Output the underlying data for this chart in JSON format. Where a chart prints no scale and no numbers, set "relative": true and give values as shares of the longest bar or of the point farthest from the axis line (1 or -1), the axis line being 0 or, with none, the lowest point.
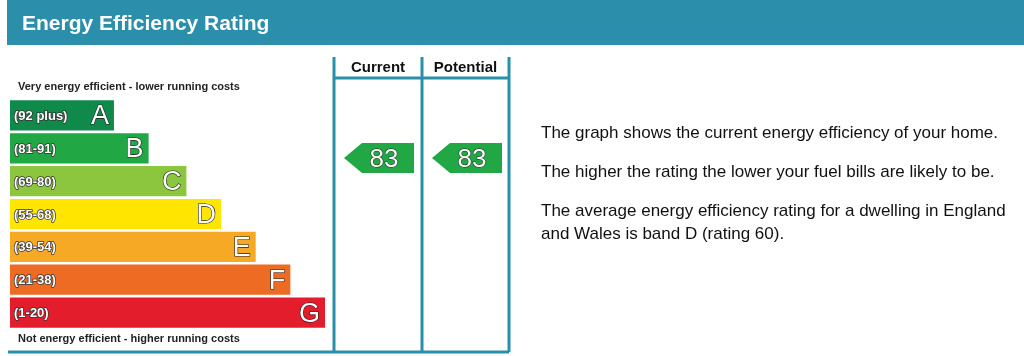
{
  "chart_data": {
    "type": "bar",
    "orientation": "horizontal",
    "relative": true,
    "title": "Energy Efficiency Rating",
    "categories": [
      "(92 plus)",
      "(81-91)",
      "(69-80)",
      "(55-68)",
      "(39-54)",
      "(21-38)",
      "(1-20)"
    ],
    "values": [
      0.33,
      0.44,
      0.56,
      0.67,
      0.78,
      0.89,
      1
    ],
    "colors": [
      "#0f8a4a",
      "#22a745",
      "#8cc63f",
      "#ffe500",
      "#f5a925",
      "#ee6b24",
      "#e31d2c"
    ],
    "annotations": [
      {
        "text": "A",
        "x": 0.33,
        "y": "(92 plus)"
      },
      {
        "text": "B",
        "x": 0.44,
        "y": "(81-91)"
      },
      {
        "text": "C",
        "x": 0.56,
        "y": "(69-80)"
      },
      {
        "text": "D",
        "x": 0.67,
        "y": "(55-68)"
      },
      {
        "text": "E",
        "x": 0.78,
        "y": "(39-54)"
      },
      {
        "text": "F",
        "x": 0.89,
        "y": "(21-38)"
      },
      {
        "text": "G",
        "x": 1,
        "y": "(1-20)"
      },
      "Very energy efficient - lower running costs",
      "Not energy efficient - higher running costs",
      "Current",
      "Potential",
      "83",
      "83",
      "The graph shows the current energy efficiency of your home.",
      "The higher the rating the lower your fuel bills are likely to be.",
      "The average energy efficiency rating for a dwelling in England and Wales is band D (rating 60)."
    ]
  }
}
